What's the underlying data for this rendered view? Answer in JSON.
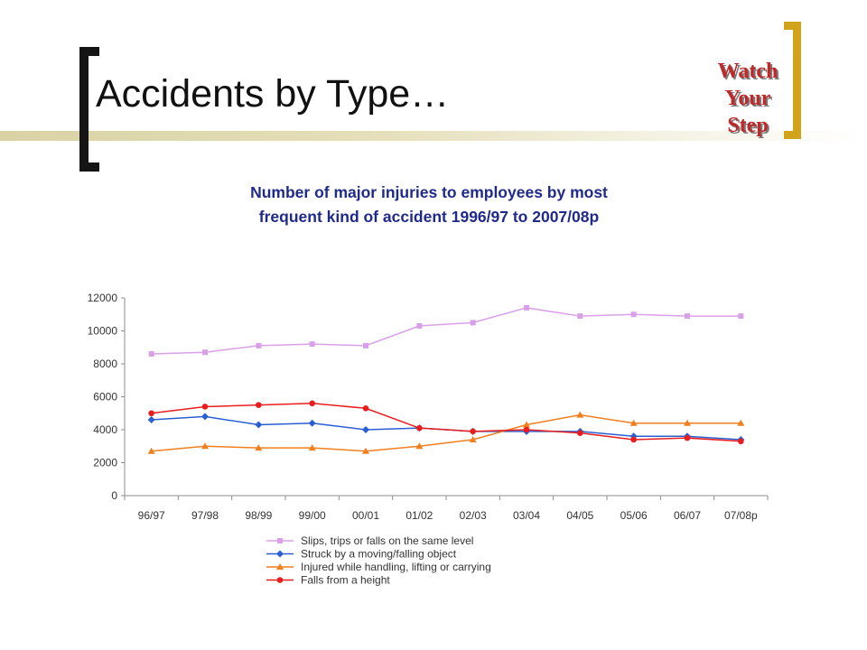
{
  "slide": {
    "title": "Accidents by Type…",
    "subtitle_line1": "Number of major injuries to employees by most",
    "subtitle_line2": "frequent kind of accident 1996/97 to 2007/08p"
  },
  "logo": {
    "lines": [
      "Watch",
      "Your",
      "Step"
    ],
    "color": "#c0282a"
  },
  "colors": {
    "accent_gold": "#d0a31a",
    "subtitle_blue": "#1f2a8a"
  },
  "chart_data": {
    "type": "line",
    "title": "",
    "xlabel": "",
    "ylabel": "",
    "ylim": [
      0,
      12000
    ],
    "yticks": [
      0,
      2000,
      4000,
      6000,
      8000,
      10000,
      12000
    ],
    "grid": false,
    "legend_position": "bottom",
    "categories": [
      "96/97",
      "97/98",
      "98/99",
      "99/00",
      "00/01",
      "01/02",
      "02/03",
      "03/04",
      "04/05",
      "05/06",
      "06/07",
      "07/08p"
    ],
    "series": [
      {
        "name": "Slips, trips or falls on the same level",
        "color": "#d9a0e8",
        "marker": "square",
        "values": [
          8600,
          8700,
          9100,
          9200,
          9100,
          10300,
          10500,
          11400,
          10900,
          11000,
          10900,
          10900
        ]
      },
      {
        "name": "Struck by a moving/falling object",
        "color": "#2a5fd4",
        "marker": "diamond",
        "values": [
          4600,
          4800,
          4300,
          4400,
          4000,
          4100,
          3900,
          3900,
          3900,
          3600,
          3600,
          3400
        ]
      },
      {
        "name": "Injured while handling, lifting or carrying",
        "color": "#f07f1e",
        "marker": "triangle",
        "values": [
          2700,
          3000,
          2900,
          2900,
          2700,
          3000,
          3400,
          4300,
          4900,
          4400,
          4400,
          4400
        ]
      },
      {
        "name": "Falls from a height",
        "color": "#e81d1d",
        "marker": "circle",
        "values": [
          5000,
          5400,
          5500,
          5600,
          5300,
          4100,
          3900,
          4000,
          3800,
          3400,
          3500,
          3300
        ]
      }
    ]
  }
}
